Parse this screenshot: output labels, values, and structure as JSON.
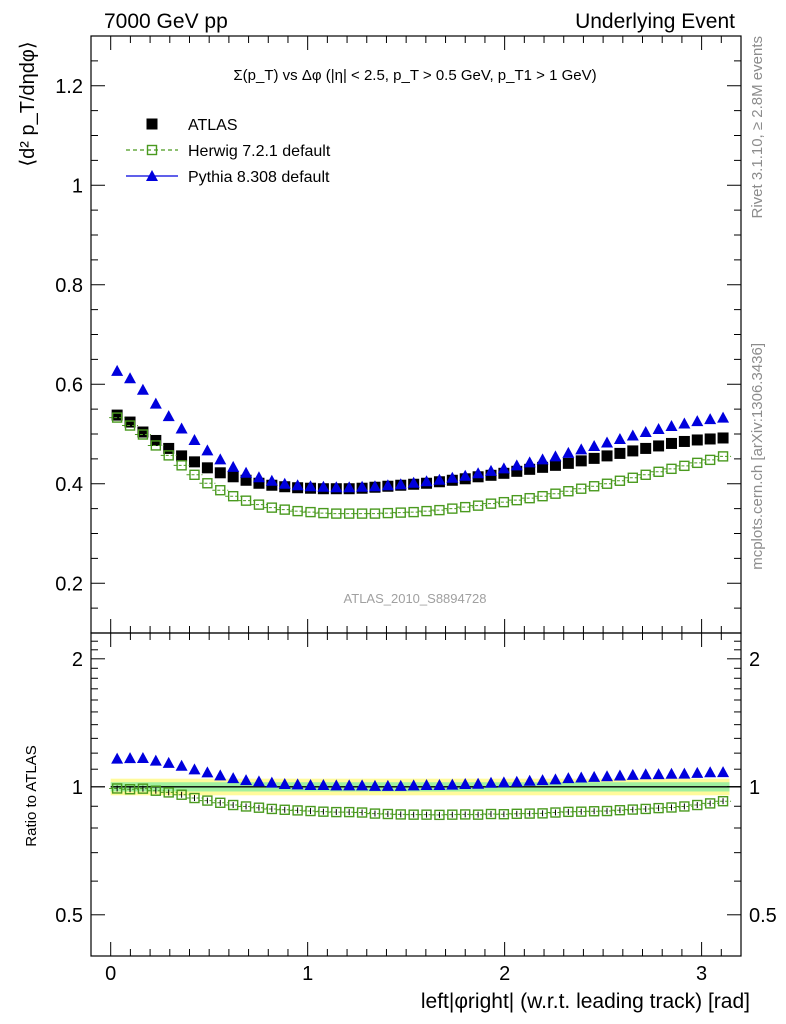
{
  "header": {
    "left": "7000 GeV pp",
    "right": "Underlying Event"
  },
  "side_labels": {
    "rivet": "Rivet 3.1.10, ≥ 2.8M events",
    "mcplots": "mcplots.cern.ch [arXiv:1306.3436]"
  },
  "chart_data": [
    {
      "type": "scatter",
      "title": "Σ(p_T) vs Δφ (|η| < 2.5, p_T > 0.5 GeV, p_T1 > 1 GeV)",
      "ylabel": "⟨d² p_T/dηdφ⟩",
      "xlim": [
        -0.1,
        3.2
      ],
      "ylim": [
        0.1,
        1.3
      ],
      "yticks": [
        0.2,
        0.4,
        0.6,
        0.8,
        1,
        1.2
      ],
      "watermark": "ATLAS_2010_S8894728",
      "legend": {
        "placement": "top-left",
        "entries": [
          "ATLAS",
          "Herwig 7.2.1 default",
          "Pythia 8.308 default"
        ]
      },
      "x": [
        0.0327,
        0.0982,
        0.1636,
        0.2291,
        0.2945,
        0.36,
        0.4254,
        0.4909,
        0.5563,
        0.6218,
        0.6872,
        0.7527,
        0.8181,
        0.8836,
        0.949,
        1.0145,
        1.0799,
        1.1454,
        1.2108,
        1.2763,
        1.3417,
        1.4072,
        1.4726,
        1.5381,
        1.6035,
        1.669,
        1.7344,
        1.7999,
        1.8653,
        1.9308,
        1.9962,
        2.0617,
        2.1271,
        2.1926,
        2.258,
        2.3235,
        2.3889,
        2.4544,
        2.5198,
        2.5853,
        2.6507,
        2.7162,
        2.7816,
        2.8471,
        2.9125,
        2.978,
        3.0434,
        3.1089
      ],
      "series": [
        {
          "name": "ATLAS",
          "color": "#000000",
          "marker": "filled-square",
          "values": [
            0.538,
            0.524,
            0.504,
            0.487,
            0.471,
            0.456,
            0.444,
            0.432,
            0.422,
            0.414,
            0.407,
            0.401,
            0.397,
            0.394,
            0.392,
            0.391,
            0.39,
            0.39,
            0.39,
            0.391,
            0.393,
            0.395,
            0.397,
            0.399,
            0.401,
            0.404,
            0.407,
            0.41,
            0.414,
            0.417,
            0.421,
            0.425,
            0.429,
            0.433,
            0.437,
            0.441,
            0.446,
            0.451,
            0.456,
            0.461,
            0.466,
            0.471,
            0.476,
            0.481,
            0.485,
            0.488,
            0.49,
            0.492
          ]
        },
        {
          "name": "Herwig 7.2.1 default",
          "color": "#4a9a1f",
          "marker": "open-square",
          "values": [
            0.533,
            0.517,
            0.499,
            0.477,
            0.457,
            0.437,
            0.418,
            0.401,
            0.387,
            0.375,
            0.366,
            0.358,
            0.352,
            0.348,
            0.345,
            0.343,
            0.341,
            0.34,
            0.34,
            0.34,
            0.34,
            0.341,
            0.342,
            0.343,
            0.345,
            0.347,
            0.35,
            0.353,
            0.356,
            0.36,
            0.363,
            0.367,
            0.371,
            0.375,
            0.38,
            0.385,
            0.39,
            0.395,
            0.4,
            0.406,
            0.412,
            0.418,
            0.424,
            0.43,
            0.436,
            0.442,
            0.448,
            0.455
          ]
        },
        {
          "name": "Pythia 8.308 default",
          "color": "#0000dd",
          "marker": "filled-triangle",
          "values": [
            0.627,
            0.612,
            0.589,
            0.561,
            0.536,
            0.511,
            0.488,
            0.467,
            0.449,
            0.434,
            0.422,
            0.413,
            0.406,
            0.4,
            0.397,
            0.395,
            0.394,
            0.393,
            0.393,
            0.394,
            0.395,
            0.397,
            0.399,
            0.402,
            0.405,
            0.408,
            0.412,
            0.416,
            0.421,
            0.426,
            0.431,
            0.437,
            0.443,
            0.449,
            0.455,
            0.462,
            0.469,
            0.476,
            0.483,
            0.49,
            0.497,
            0.504,
            0.51,
            0.516,
            0.521,
            0.526,
            0.53,
            0.533
          ]
        }
      ]
    },
    {
      "type": "scatter",
      "xlabel": "left|φright| (w.r.t. leading track) [rad]",
      "ylabel": "Ratio to ATLAS",
      "xlim": [
        -0.1,
        3.2
      ],
      "xticks": [
        0,
        1,
        2,
        3
      ],
      "ylim": [
        0.4,
        2.3
      ],
      "ylog": true,
      "yticks": [
        0.5,
        1,
        2
      ],
      "band_colors": [
        "#fffa9c",
        "#a0f0a0"
      ],
      "series": [
        {
          "name": "Herwig 7.2.1 default",
          "color": "#4a9a1f",
          "marker": "open-square",
          "values": [
            0.991,
            0.987,
            0.99,
            0.979,
            0.97,
            0.958,
            0.941,
            0.928,
            0.917,
            0.906,
            0.899,
            0.893,
            0.887,
            0.883,
            0.88,
            0.877,
            0.874,
            0.872,
            0.872,
            0.87,
            0.865,
            0.863,
            0.861,
            0.86,
            0.86,
            0.859,
            0.86,
            0.861,
            0.86,
            0.863,
            0.862,
            0.864,
            0.865,
            0.866,
            0.87,
            0.873,
            0.874,
            0.876,
            0.877,
            0.881,
            0.884,
            0.887,
            0.891,
            0.894,
            0.899,
            0.906,
            0.914,
            0.925
          ]
        },
        {
          "name": "Pythia 8.308 default",
          "color": "#0000dd",
          "marker": "filled-triangle",
          "values": [
            1.165,
            1.168,
            1.169,
            1.152,
            1.138,
            1.121,
            1.099,
            1.081,
            1.064,
            1.048,
            1.037,
            1.03,
            1.023,
            1.015,
            1.013,
            1.01,
            1.01,
            1.008,
            1.008,
            1.008,
            1.005,
            1.005,
            1.005,
            1.008,
            1.01,
            1.01,
            1.012,
            1.015,
            1.017,
            1.022,
            1.024,
            1.028,
            1.033,
            1.037,
            1.041,
            1.048,
            1.052,
            1.055,
            1.059,
            1.063,
            1.067,
            1.07,
            1.071,
            1.073,
            1.074,
            1.078,
            1.082,
            1.083
          ]
        }
      ]
    }
  ]
}
